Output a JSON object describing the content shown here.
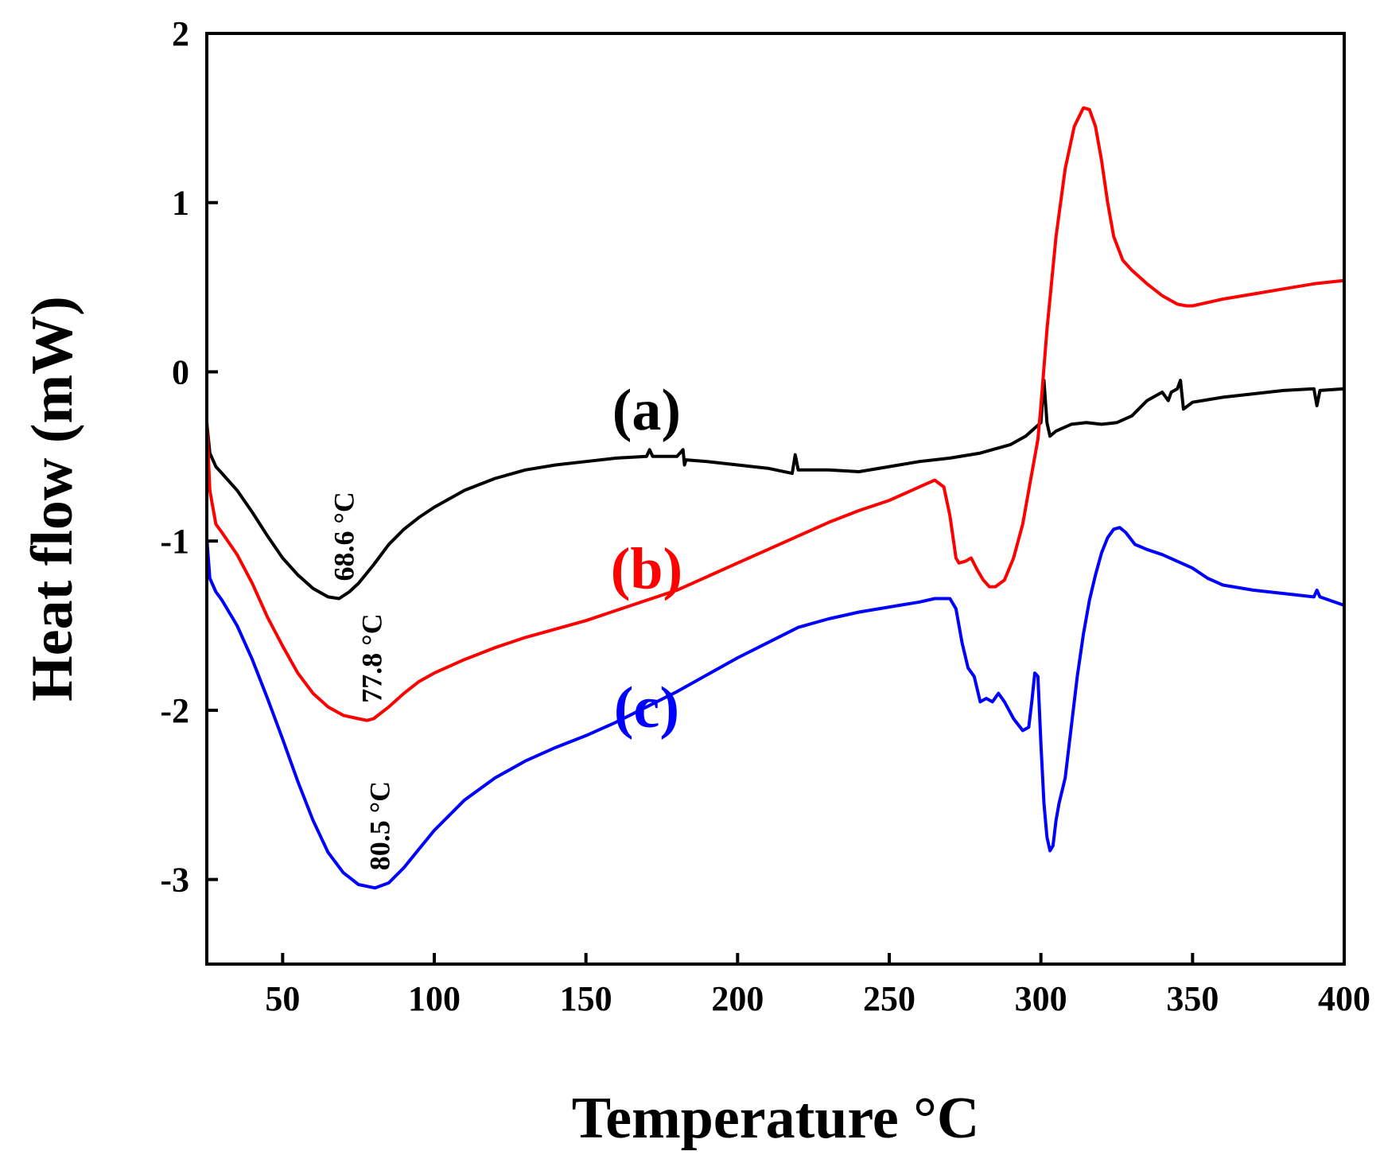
{
  "chart_data": {
    "type": "line",
    "title": "",
    "xlabel": "Temperature °C",
    "ylabel": "Heat flow (mW)",
    "xlim": [
      25,
      400
    ],
    "ylim": [
      -3.5,
      2
    ],
    "xticks": [
      50,
      100,
      150,
      200,
      250,
      300,
      350,
      400
    ],
    "yticks": [
      -3,
      -2,
      -1,
      0,
      1,
      2
    ],
    "grid": false,
    "series": [
      {
        "name": "(a)",
        "color": "#000000",
        "points": [
          [
            25,
            -0.3
          ],
          [
            26,
            -0.48
          ],
          [
            28,
            -0.56
          ],
          [
            30,
            -0.6
          ],
          [
            35,
            -0.7
          ],
          [
            40,
            -0.83
          ],
          [
            45,
            -0.97
          ],
          [
            50,
            -1.1
          ],
          [
            55,
            -1.2
          ],
          [
            60,
            -1.28
          ],
          [
            65,
            -1.33
          ],
          [
            68.6,
            -1.34
          ],
          [
            72,
            -1.3
          ],
          [
            75,
            -1.25
          ],
          [
            80,
            -1.14
          ],
          [
            85,
            -1.02
          ],
          [
            90,
            -0.93
          ],
          [
            95,
            -0.86
          ],
          [
            100,
            -0.8
          ],
          [
            110,
            -0.7
          ],
          [
            120,
            -0.63
          ],
          [
            130,
            -0.58
          ],
          [
            140,
            -0.55
          ],
          [
            150,
            -0.53
          ],
          [
            160,
            -0.51
          ],
          [
            170,
            -0.5
          ],
          [
            171,
            -0.46
          ],
          [
            172,
            -0.5
          ],
          [
            180,
            -0.5
          ],
          [
            182,
            -0.46
          ],
          [
            182.5,
            -0.55
          ],
          [
            183,
            -0.52
          ],
          [
            190,
            -0.53
          ],
          [
            200,
            -0.55
          ],
          [
            210,
            -0.57
          ],
          [
            218,
            -0.6
          ],
          [
            219,
            -0.49
          ],
          [
            220,
            -0.58
          ],
          [
            230,
            -0.58
          ],
          [
            240,
            -0.59
          ],
          [
            250,
            -0.56
          ],
          [
            260,
            -0.53
          ],
          [
            270,
            -0.51
          ],
          [
            280,
            -0.48
          ],
          [
            290,
            -0.43
          ],
          [
            295,
            -0.38
          ],
          [
            300,
            -0.3
          ],
          [
            301,
            -0.05
          ],
          [
            302,
            -0.3
          ],
          [
            303,
            -0.38
          ],
          [
            305,
            -0.35
          ],
          [
            310,
            -0.31
          ],
          [
            315,
            -0.3
          ],
          [
            320,
            -0.31
          ],
          [
            325,
            -0.3
          ],
          [
            330,
            -0.26
          ],
          [
            335,
            -0.17
          ],
          [
            340,
            -0.12
          ],
          [
            342,
            -0.17
          ],
          [
            343,
            -0.12
          ],
          [
            345,
            -0.1
          ],
          [
            346,
            -0.05
          ],
          [
            347,
            -0.22
          ],
          [
            350,
            -0.18
          ],
          [
            360,
            -0.15
          ],
          [
            370,
            -0.13
          ],
          [
            380,
            -0.11
          ],
          [
            390,
            -0.1
          ],
          [
            391,
            -0.2
          ],
          [
            392,
            -0.11
          ],
          [
            400,
            -0.1
          ]
        ]
      },
      {
        "name": "(b)",
        "color": "#ff0000",
        "points": [
          [
            25,
            -0.3
          ],
          [
            26,
            -0.7
          ],
          [
            28,
            -0.9
          ],
          [
            30,
            -0.95
          ],
          [
            35,
            -1.08
          ],
          [
            40,
            -1.25
          ],
          [
            45,
            -1.45
          ],
          [
            50,
            -1.62
          ],
          [
            55,
            -1.78
          ],
          [
            60,
            -1.9
          ],
          [
            65,
            -1.98
          ],
          [
            70,
            -2.03
          ],
          [
            75,
            -2.05
          ],
          [
            77.8,
            -2.06
          ],
          [
            80,
            -2.05
          ],
          [
            85,
            -1.98
          ],
          [
            90,
            -1.9
          ],
          [
            95,
            -1.83
          ],
          [
            100,
            -1.78
          ],
          [
            110,
            -1.7
          ],
          [
            120,
            -1.63
          ],
          [
            130,
            -1.57
          ],
          [
            140,
            -1.52
          ],
          [
            150,
            -1.47
          ],
          [
            160,
            -1.41
          ],
          [
            170,
            -1.35
          ],
          [
            180,
            -1.29
          ],
          [
            190,
            -1.21
          ],
          [
            200,
            -1.13
          ],
          [
            210,
            -1.05
          ],
          [
            220,
            -0.97
          ],
          [
            230,
            -0.89
          ],
          [
            240,
            -0.82
          ],
          [
            250,
            -0.76
          ],
          [
            260,
            -0.68
          ],
          [
            265,
            -0.64
          ],
          [
            268,
            -0.68
          ],
          [
            270,
            -0.85
          ],
          [
            272,
            -1.1
          ],
          [
            273,
            -1.13
          ],
          [
            275,
            -1.12
          ],
          [
            277,
            -1.1
          ],
          [
            279,
            -1.17
          ],
          [
            281,
            -1.23
          ],
          [
            283,
            -1.27
          ],
          [
            285,
            -1.27
          ],
          [
            288,
            -1.23
          ],
          [
            291,
            -1.1
          ],
          [
            294,
            -0.9
          ],
          [
            297,
            -0.6
          ],
          [
            299,
            -0.4
          ],
          [
            300,
            -0.2
          ],
          [
            302,
            0.25
          ],
          [
            305,
            0.8
          ],
          [
            308,
            1.2
          ],
          [
            311,
            1.45
          ],
          [
            314,
            1.56
          ],
          [
            316,
            1.55
          ],
          [
            318,
            1.45
          ],
          [
            320,
            1.25
          ],
          [
            322,
            1.0
          ],
          [
            324,
            0.8
          ],
          [
            327,
            0.66
          ],
          [
            330,
            0.6
          ],
          [
            335,
            0.52
          ],
          [
            340,
            0.45
          ],
          [
            345,
            0.4
          ],
          [
            348,
            0.39
          ],
          [
            350,
            0.39
          ],
          [
            360,
            0.43
          ],
          [
            370,
            0.46
          ],
          [
            380,
            0.49
          ],
          [
            390,
            0.52
          ],
          [
            400,
            0.54
          ]
        ]
      },
      {
        "name": "(c)",
        "color": "#0000ff",
        "points": [
          [
            25,
            -0.98
          ],
          [
            26,
            -1.22
          ],
          [
            28,
            -1.3
          ],
          [
            30,
            -1.35
          ],
          [
            35,
            -1.5
          ],
          [
            40,
            -1.7
          ],
          [
            45,
            -1.93
          ],
          [
            50,
            -2.17
          ],
          [
            55,
            -2.42
          ],
          [
            60,
            -2.65
          ],
          [
            65,
            -2.84
          ],
          [
            70,
            -2.96
          ],
          [
            75,
            -3.03
          ],
          [
            80.5,
            -3.05
          ],
          [
            85,
            -3.02
          ],
          [
            90,
            -2.93
          ],
          [
            95,
            -2.82
          ],
          [
            100,
            -2.71
          ],
          [
            110,
            -2.53
          ],
          [
            120,
            -2.4
          ],
          [
            130,
            -2.3
          ],
          [
            140,
            -2.22
          ],
          [
            150,
            -2.15
          ],
          [
            160,
            -2.07
          ],
          [
            170,
            -1.98
          ],
          [
            180,
            -1.89
          ],
          [
            190,
            -1.79
          ],
          [
            200,
            -1.69
          ],
          [
            210,
            -1.6
          ],
          [
            220,
            -1.51
          ],
          [
            230,
            -1.46
          ],
          [
            240,
            -1.42
          ],
          [
            250,
            -1.39
          ],
          [
            260,
            -1.36
          ],
          [
            265,
            -1.34
          ],
          [
            270,
            -1.34
          ],
          [
            272,
            -1.4
          ],
          [
            274,
            -1.6
          ],
          [
            276,
            -1.75
          ],
          [
            278,
            -1.8
          ],
          [
            280,
            -1.95
          ],
          [
            282,
            -1.93
          ],
          [
            284,
            -1.95
          ],
          [
            286,
            -1.9
          ],
          [
            288,
            -1.95
          ],
          [
            291,
            -2.05
          ],
          [
            294,
            -2.12
          ],
          [
            296,
            -2.1
          ],
          [
            297,
            -1.95
          ],
          [
            298,
            -1.78
          ],
          [
            299,
            -1.8
          ],
          [
            300,
            -2.2
          ],
          [
            301,
            -2.55
          ],
          [
            302,
            -2.75
          ],
          [
            303,
            -2.83
          ],
          [
            304,
            -2.8
          ],
          [
            305,
            -2.65
          ],
          [
            306,
            -2.55
          ],
          [
            308,
            -2.4
          ],
          [
            310,
            -2.1
          ],
          [
            312,
            -1.8
          ],
          [
            314,
            -1.55
          ],
          [
            316,
            -1.35
          ],
          [
            318,
            -1.2
          ],
          [
            320,
            -1.07
          ],
          [
            322,
            -0.98
          ],
          [
            324,
            -0.93
          ],
          [
            326,
            -0.92
          ],
          [
            328,
            -0.95
          ],
          [
            331,
            -1.02
          ],
          [
            335,
            -1.05
          ],
          [
            340,
            -1.08
          ],
          [
            345,
            -1.12
          ],
          [
            350,
            -1.16
          ],
          [
            355,
            -1.22
          ],
          [
            360,
            -1.26
          ],
          [
            370,
            -1.29
          ],
          [
            380,
            -1.31
          ],
          [
            390,
            -1.33
          ],
          [
            391,
            -1.29
          ],
          [
            392,
            -1.33
          ],
          [
            400,
            -1.38
          ]
        ]
      }
    ],
    "series_labels": [
      {
        "text": "(a)",
        "color": "#000000",
        "x": 170,
        "y": -0.34
      },
      {
        "text": "(b)",
        "color": "#ff0000",
        "x": 170,
        "y": -1.28
      },
      {
        "text": "(c)",
        "color": "#0000ff",
        "x": 170,
        "y": -2.1
      }
    ],
    "annotations": [
      {
        "text": "68.6 °C",
        "x": 68.6,
        "y": -1.34
      },
      {
        "text": "77.8 °C",
        "x": 77.8,
        "y": -2.06
      },
      {
        "text": "80.5 °C",
        "x": 80.5,
        "y": -3.05
      }
    ]
  }
}
